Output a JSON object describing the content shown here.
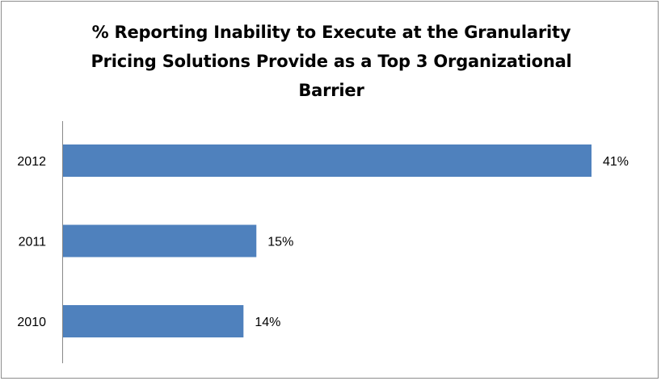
{
  "chart_data": {
    "type": "bar",
    "orientation": "horizontal",
    "title_lines": [
      "% Reporting Inability to Execute at the Granularity",
      "Pricing Solutions Provide as a Top 3 Organizational",
      "Barrier"
    ],
    "categories": [
      "2012",
      "2011",
      "2010"
    ],
    "values": [
      41,
      15,
      14
    ],
    "value_labels": [
      "41%",
      "15%",
      "14%"
    ],
    "xlim": [
      0,
      41
    ],
    "bar_color": "#4f81bd",
    "grid": false,
    "legend": "none"
  }
}
